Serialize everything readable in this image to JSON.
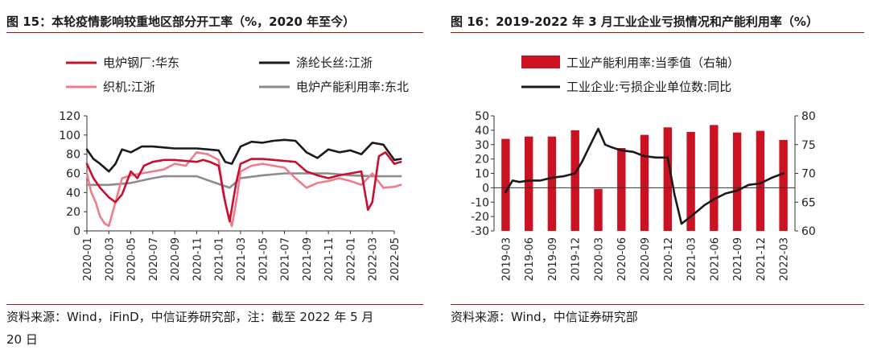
{
  "left": {
    "title": "图 15：本轮疫情影响较重地区部分开工率（%，2020 年至今）",
    "source_line1": "资料来源：Wind，iFinD，中信证券研究部，注：截至 2022 年 5 月",
    "source_line2": "20 日"
  },
  "right": {
    "title": "图 16：2019-2022 年 3 月工业企业亏损情况和产能利用率（%）",
    "source": "资料来源：Wind，中信证券研究部"
  },
  "chart_data": [
    {
      "type": "line",
      "x_ticks": [
        "2020-01",
        "2020-03",
        "2020-05",
        "2020-07",
        "2020-09",
        "2020-11",
        "2021-01",
        "2021-03",
        "2021-05",
        "2021-07",
        "2021-09",
        "2021-11",
        "2022-01",
        "2022-03",
        "2022-05"
      ],
      "ylim": [
        0,
        120
      ],
      "y_ticks": [
        0,
        20,
        40,
        60,
        80,
        100,
        120
      ],
      "grid": false,
      "legend": "top",
      "series": [
        {
          "name": "电炉钢厂:华东",
          "color": "#c8102e",
          "x": [
            0,
            0.3,
            0.6,
            1,
            1.3,
            1.6,
            2,
            2.3,
            2.6,
            3,
            3.5,
            4,
            4.5,
            5,
            5.3,
            5.6,
            6,
            6.3,
            6.5,
            6.8,
            7,
            7.5,
            8,
            8.5,
            9,
            9.5,
            10,
            10.5,
            11,
            11.5,
            12,
            12.5,
            12.8,
            13,
            13.3,
            13.6,
            14,
            14.3
          ],
          "y": [
            70,
            55,
            45,
            35,
            30,
            38,
            62,
            55,
            68,
            72,
            74,
            74,
            73,
            72,
            74,
            72,
            68,
            30,
            10,
            50,
            70,
            75,
            75,
            74,
            73,
            72,
            62,
            58,
            55,
            58,
            60,
            62,
            22,
            30,
            78,
            82,
            70,
            72
          ]
        },
        {
          "name": "涤纶长丝:江浙",
          "color": "#1a1a1a",
          "x": [
            0,
            0.3,
            0.6,
            1,
            1.3,
            1.6,
            2,
            2.5,
            3,
            3.5,
            4,
            4.5,
            5,
            5.5,
            6,
            6.3,
            6.6,
            7,
            7.5,
            8,
            8.5,
            9,
            9.5,
            10,
            10.5,
            11,
            11.5,
            12,
            12.5,
            13,
            13.5,
            14,
            14.3
          ],
          "y": [
            85,
            75,
            70,
            62,
            70,
            85,
            82,
            88,
            88,
            87,
            86,
            86,
            86,
            85,
            84,
            72,
            70,
            88,
            93,
            92,
            94,
            95,
            94,
            82,
            76,
            85,
            82,
            84,
            80,
            92,
            90,
            74,
            75
          ]
        },
        {
          "name": "织机:江浙",
          "color": "#f07c8a",
          "x": [
            0,
            0.2,
            0.4,
            0.6,
            0.8,
            1,
            1.3,
            1.6,
            2,
            2.5,
            3,
            3.5,
            4,
            4.5,
            5,
            5.5,
            6,
            6.2,
            6.4,
            6.6,
            6.8,
            7,
            7.5,
            8,
            8.5,
            9,
            9.5,
            10,
            10.5,
            11,
            11.5,
            12,
            12.5,
            13,
            13.5,
            14,
            14.3
          ],
          "y": [
            60,
            40,
            30,
            15,
            8,
            5,
            30,
            55,
            58,
            60,
            62,
            64,
            70,
            68,
            82,
            80,
            74,
            40,
            20,
            5,
            30,
            62,
            68,
            70,
            68,
            66,
            55,
            45,
            50,
            52,
            55,
            52,
            48,
            60,
            45,
            46,
            48
          ]
        },
        {
          "name": "电炉产能利用率:东北",
          "color": "#8c8c8c",
          "x": [
            0,
            1,
            2,
            3,
            3.5,
            4,
            5,
            6,
            6.5,
            7,
            8,
            9,
            10,
            11,
            12,
            13,
            14,
            14.3
          ],
          "y": [
            48,
            48,
            50,
            55,
            57,
            57,
            57,
            49,
            45,
            55,
            58,
            60,
            60,
            60,
            58,
            57,
            57,
            57
          ]
        }
      ]
    },
    {
      "type": "bar+line",
      "categories": [
        "2019-03",
        "2019-06",
        "2019-09",
        "2019-12",
        "2020-03",
        "2020-06",
        "2020-09",
        "2020-12",
        "2021-03",
        "2021-06",
        "2021-09",
        "2021-12",
        "2022-03"
      ],
      "y_left": {
        "ticks": [
          -30,
          -20,
          -10,
          0,
          10,
          20,
          30,
          40,
          50
        ],
        "ylim": [
          -30,
          50
        ]
      },
      "y_right": {
        "ticks": [
          60,
          65,
          70,
          75,
          80
        ],
        "ylim": [
          60,
          80
        ]
      },
      "grid": false,
      "legend": "top",
      "bar_series": {
        "name": "工业产能利用率:当季值（右轴）",
        "color": "#cc1122",
        "axis": "right",
        "values": [
          76.0,
          76.4,
          76.4,
          77.5,
          67.3,
          74.4,
          76.7,
          78.0,
          77.2,
          78.4,
          77.1,
          77.4,
          75.8
        ]
      },
      "line_series": {
        "name": "工业企业:亏损企业单位数:同比",
        "color": "#1a1a1a",
        "axis": "left",
        "x": [
          0,
          0.3,
          0.6,
          1,
          1.5,
          2,
          2.5,
          3,
          3.3,
          3.6,
          4,
          4.3,
          4.6,
          5,
          5.5,
          6,
          6.5,
          7,
          7.3,
          7.6,
          8,
          8.3,
          8.6,
          9,
          9.5,
          10,
          10.5,
          11,
          11.5,
          12
        ],
        "y": [
          -3,
          5,
          4,
          5,
          5,
          7,
          8,
          10,
          18,
          28,
          41,
          30,
          28,
          26,
          25,
          22,
          21,
          21,
          -5,
          -25,
          -20,
          -16,
          -12,
          -8,
          -4,
          -2,
          2,
          3,
          7,
          10
        ]
      }
    }
  ]
}
